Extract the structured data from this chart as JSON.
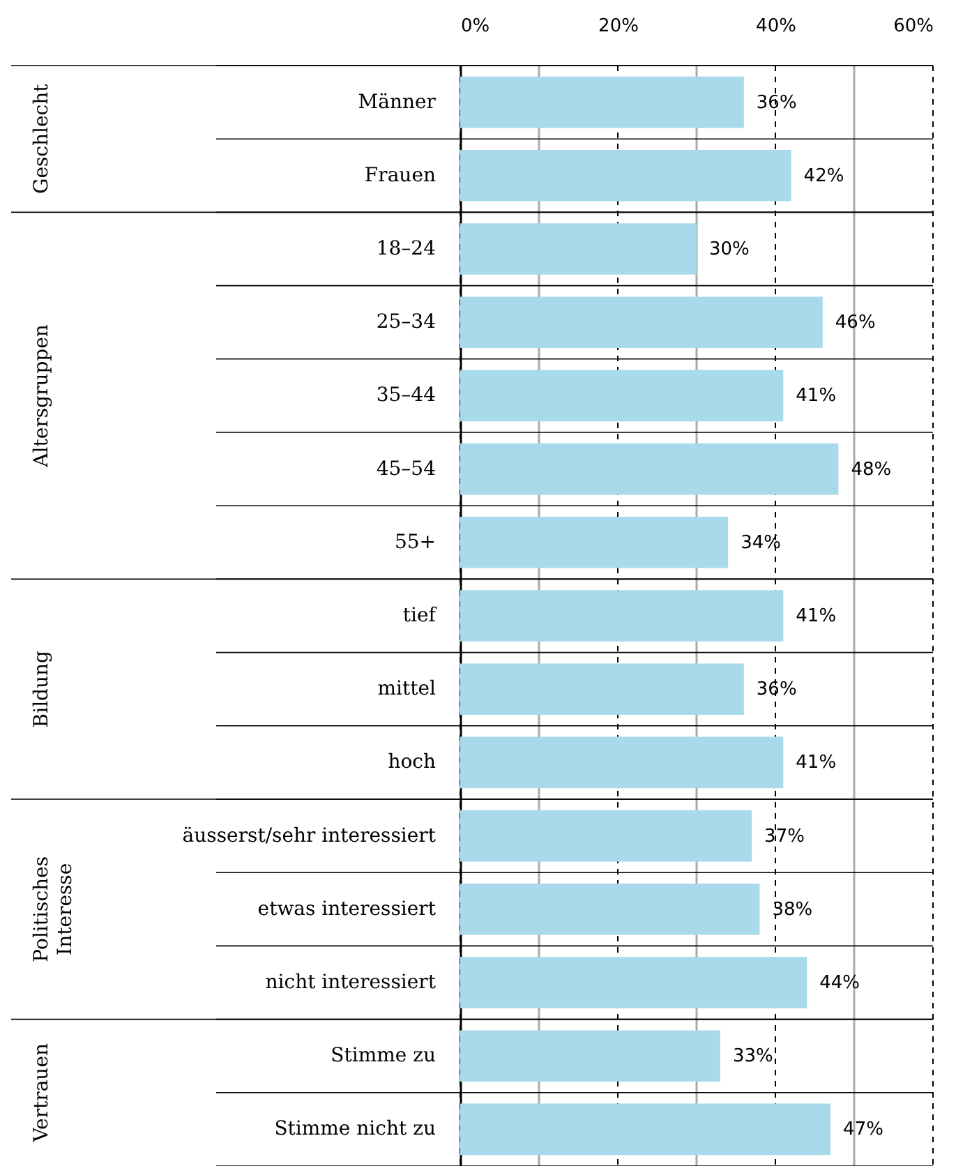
{
  "chart_data": {
    "type": "bar",
    "orientation": "horizontal",
    "categories": [
      "Männer",
      "Frauen",
      "18–24",
      "25–34",
      "35–44",
      "45–54",
      "55+",
      "tief",
      "mittel",
      "hoch",
      "äusserst/sehr interessiert",
      "etwas interessiert",
      "nicht interessiert",
      "Stimme zu",
      "Stimme nicht zu"
    ],
    "values": [
      36,
      42,
      30,
      46,
      41,
      48,
      34,
      41,
      36,
      41,
      37,
      38,
      44,
      33,
      47
    ],
    "value_labels": [
      "36%",
      "42%",
      "30%",
      "46%",
      "41%",
      "48%",
      "34%",
      "41%",
      "36%",
      "41%",
      "37%",
      "38%",
      "44%",
      "33%",
      "47%"
    ],
    "color": "#a8daec",
    "xlim": [
      0,
      60
    ],
    "xticks": [
      {
        "value": 0,
        "label": "0%"
      },
      {
        "value": 10,
        "label": null
      },
      {
        "value": 20,
        "label": "20%"
      },
      {
        "value": 30,
        "label": null
      },
      {
        "value": 40,
        "label": "40%"
      },
      {
        "value": 50,
        "label": null
      },
      {
        "value": 60,
        "label": "60%"
      }
    ],
    "grid": "x",
    "annotations": [
      "Geschlecht",
      "Altersgruppen",
      "Bildung",
      "Politisches Interesse",
      "Vertrauen"
    ]
  }
}
